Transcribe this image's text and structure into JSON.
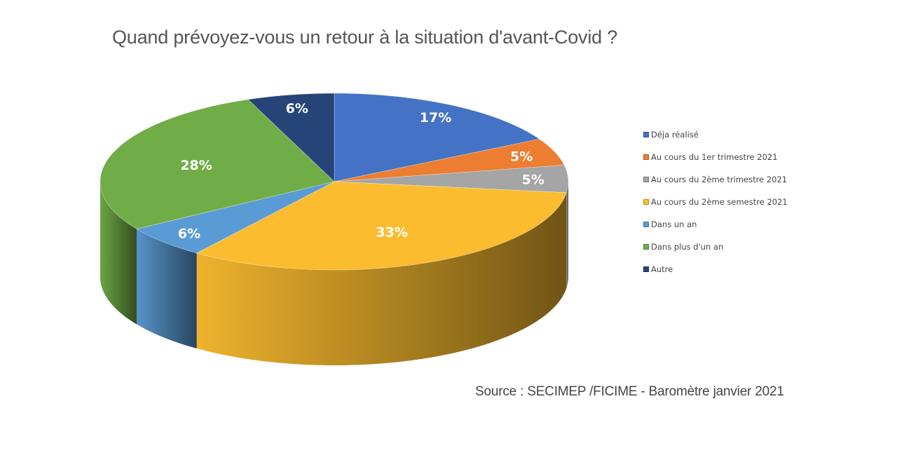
{
  "chart_data": {
    "type": "pie",
    "title": "Quand prévoyez-vous un retour à la situation d'avant-Covid ?",
    "categories": [
      "Déja réalisé",
      "Au cours du 1er trimestre 2021",
      "Au cours du 2ème trimestre 2021",
      "Au cours du 2ème semestre 2021",
      "Dans un an",
      "Dans plus d'un an",
      "Autre"
    ],
    "values": [
      17,
      5,
      5,
      33,
      6,
      28,
      6
    ],
    "labels": [
      "17%",
      "5%",
      "5%",
      "33%",
      "6%",
      "28%",
      "6%"
    ],
    "colors": [
      "#4472C4",
      "#ED7D31",
      "#A5A5A5",
      "#FBBC2F",
      "#5B9BD5",
      "#70AD47",
      "#264478"
    ],
    "legend_position": "right",
    "style": "3d"
  },
  "source": "Source : SECIMEP /FICIME - Baromètre janvier 2021"
}
